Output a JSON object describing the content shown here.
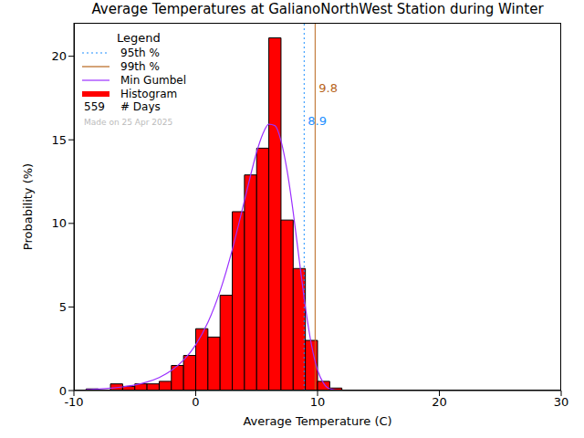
{
  "chart_data": {
    "type": "histogram",
    "title": "Average Temperatures at GalianoNorthWest Station during Winter",
    "x_label": "Average Temperature (C)",
    "y_label": "Probability (%)",
    "xlim": [
      -10,
      30
    ],
    "xticks": [
      -10,
      0,
      10,
      20,
      30
    ],
    "ylim": [
      0,
      22
    ],
    "yticks": [
      0,
      5,
      10,
      15,
      20
    ],
    "legend": "top-left",
    "legend_title": "Legend",
    "count": 559,
    "count_label": "# Days",
    "note": "Made on 25 Apr 2025",
    "series": [
      {
        "name": "Histogram",
        "type": "bar",
        "color": "#ff0000",
        "bins": [
          -9,
          -8,
          -7,
          -6,
          -5,
          -4,
          -3,
          -2,
          -1,
          0,
          1,
          2,
          3,
          4,
          5,
          6,
          7,
          8,
          9,
          10,
          11,
          12
        ],
        "values": [
          0.1,
          0,
          0.4,
          0.25,
          0.4,
          0.4,
          0.55,
          1.5,
          2.1,
          3.7,
          3.2,
          5.7,
          10.7,
          12.9,
          14.5,
          21.1,
          10.2,
          7.3,
          3.0,
          0.55,
          0.15
        ]
      },
      {
        "name": "Min Gumbel",
        "type": "line",
        "color": "#9b30ff",
        "x": [
          -9,
          -8,
          -7,
          -6,
          -5,
          -4,
          -3,
          -2,
          -1,
          0,
          1,
          2,
          3,
          3.5,
          4,
          4.5,
          5,
          5.5,
          6,
          6.5,
          7,
          7.5,
          8,
          8.5,
          9,
          9.5,
          10,
          10.5,
          11,
          12
        ],
        "values": [
          0.06,
          0.09,
          0.14,
          0.22,
          0.33,
          0.51,
          0.78,
          1.2,
          1.82,
          2.74,
          4.08,
          5.96,
          8.43,
          9.87,
          11.37,
          12.87,
          14.26,
          15.34,
          15.93,
          15.85,
          14.94,
          13.16,
          10.68,
          7.8,
          5.01,
          2.74,
          1.23,
          0.43,
          0.11,
          0
        ]
      }
    ],
    "reference_lines": [
      {
        "name": "95th %",
        "x": 8.9,
        "color": "#1e90ff",
        "line_style": "dotted"
      },
      {
        "name": "99th %",
        "x": 9.8,
        "color": "#b8651b",
        "line_style": "solid"
      }
    ]
  }
}
